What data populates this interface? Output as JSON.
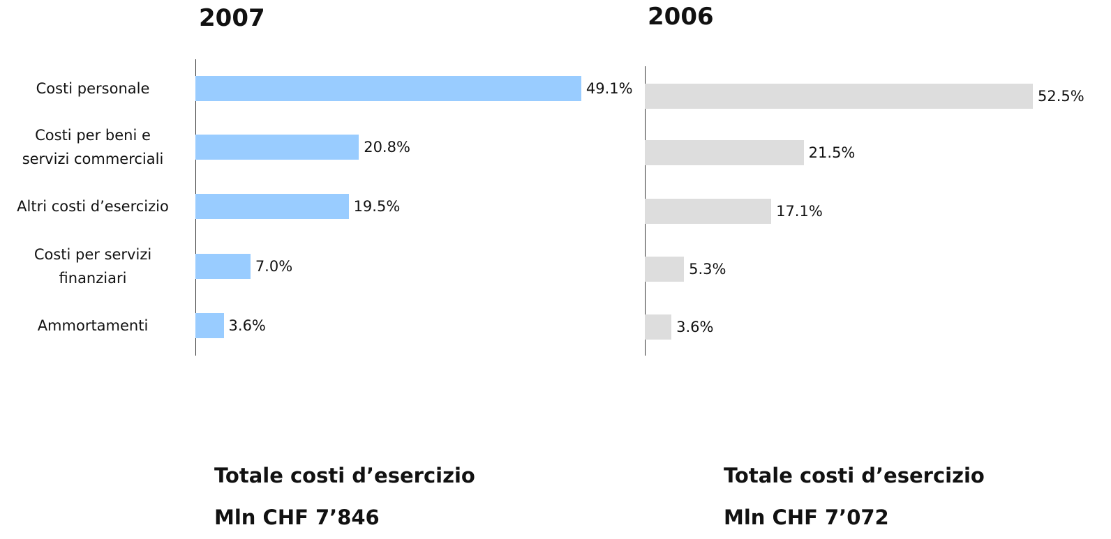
{
  "chart_data": [
    {
      "type": "bar",
      "title": "2007",
      "categories": [
        "Costi personale",
        "Costi per beni e\nservizi commerciali",
        "Altri costi d’esercizio",
        "Costi per servizi\nfinanziari",
        "Ammortamenti"
      ],
      "values": [
        49.1,
        20.8,
        19.5,
        7.0,
        3.6
      ],
      "value_labels": [
        "49.1%",
        "20.8%",
        "19.5%",
        "7.0%",
        "3.6%"
      ],
      "color": "#99ccff",
      "annotations": [
        "Totale costi d’esercizio",
        "Mln CHF 7’846"
      ]
    },
    {
      "type": "bar",
      "title": "2006",
      "values": [
        52.5,
        21.5,
        17.1,
        5.3,
        3.6
      ],
      "value_labels": [
        "52.5%",
        "21.5%",
        "17.1%",
        "5.3%",
        "3.6%"
      ],
      "color": "#dddddd",
      "annotations": [
        "Totale costi d’esercizio",
        "Mln CHF 7’072"
      ]
    }
  ]
}
